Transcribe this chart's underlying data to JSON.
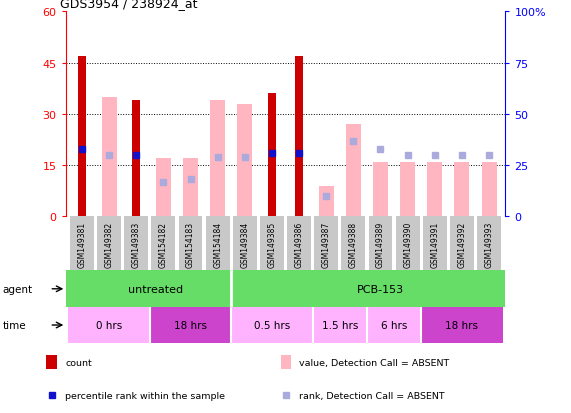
{
  "title": "GDS3954 / 238924_at",
  "samples": [
    "GSM149381",
    "GSM149382",
    "GSM149383",
    "GSM154182",
    "GSM154183",
    "GSM154184",
    "GSM149384",
    "GSM149385",
    "GSM149386",
    "GSM149387",
    "GSM149388",
    "GSM149389",
    "GSM149390",
    "GSM149391",
    "GSM149392",
    "GSM149393"
  ],
  "count_values": [
    47,
    0,
    34,
    0,
    0,
    0,
    0,
    36,
    47,
    0,
    0,
    0,
    0,
    0,
    0,
    0
  ],
  "value_absent": [
    0,
    35,
    0,
    17,
    17,
    34,
    33,
    0,
    0,
    9,
    27,
    16,
    16,
    16,
    16,
    16
  ],
  "rank_present": [
    33,
    0,
    30,
    0,
    0,
    0,
    0,
    31,
    31,
    0,
    0,
    0,
    0,
    0,
    0,
    0
  ],
  "rank_absent": [
    0,
    30,
    0,
    17,
    18,
    29,
    29,
    0,
    0,
    10,
    37,
    33,
    30,
    30,
    30,
    30
  ],
  "left_ticks": [
    0,
    15,
    30,
    45,
    60
  ],
  "right_ticks": [
    0,
    25,
    50,
    75,
    100
  ],
  "count_color": "#CC0000",
  "value_absent_color": "#FFB6C1",
  "rank_present_color": "#1111CC",
  "rank_absent_color": "#AAAADD",
  "agent_untreated_color": "#66DD66",
  "agent_pcb_color": "#66DD66",
  "time_light_color": "#FFB3FF",
  "time_dark_color": "#CC44CC",
  "sample_box_color": "#C8C8C8",
  "time_groups": [
    {
      "label": "0 hrs",
      "start": 0,
      "end": 3,
      "dark": false
    },
    {
      "label": "18 hrs",
      "start": 3,
      "end": 6,
      "dark": true
    },
    {
      "label": "0.5 hrs",
      "start": 6,
      "end": 9,
      "dark": false
    },
    {
      "label": "1.5 hrs",
      "start": 9,
      "end": 11,
      "dark": false
    },
    {
      "label": "6 hrs",
      "start": 11,
      "end": 13,
      "dark": false
    },
    {
      "label": "18 hrs",
      "start": 13,
      "end": 16,
      "dark": true
    }
  ]
}
